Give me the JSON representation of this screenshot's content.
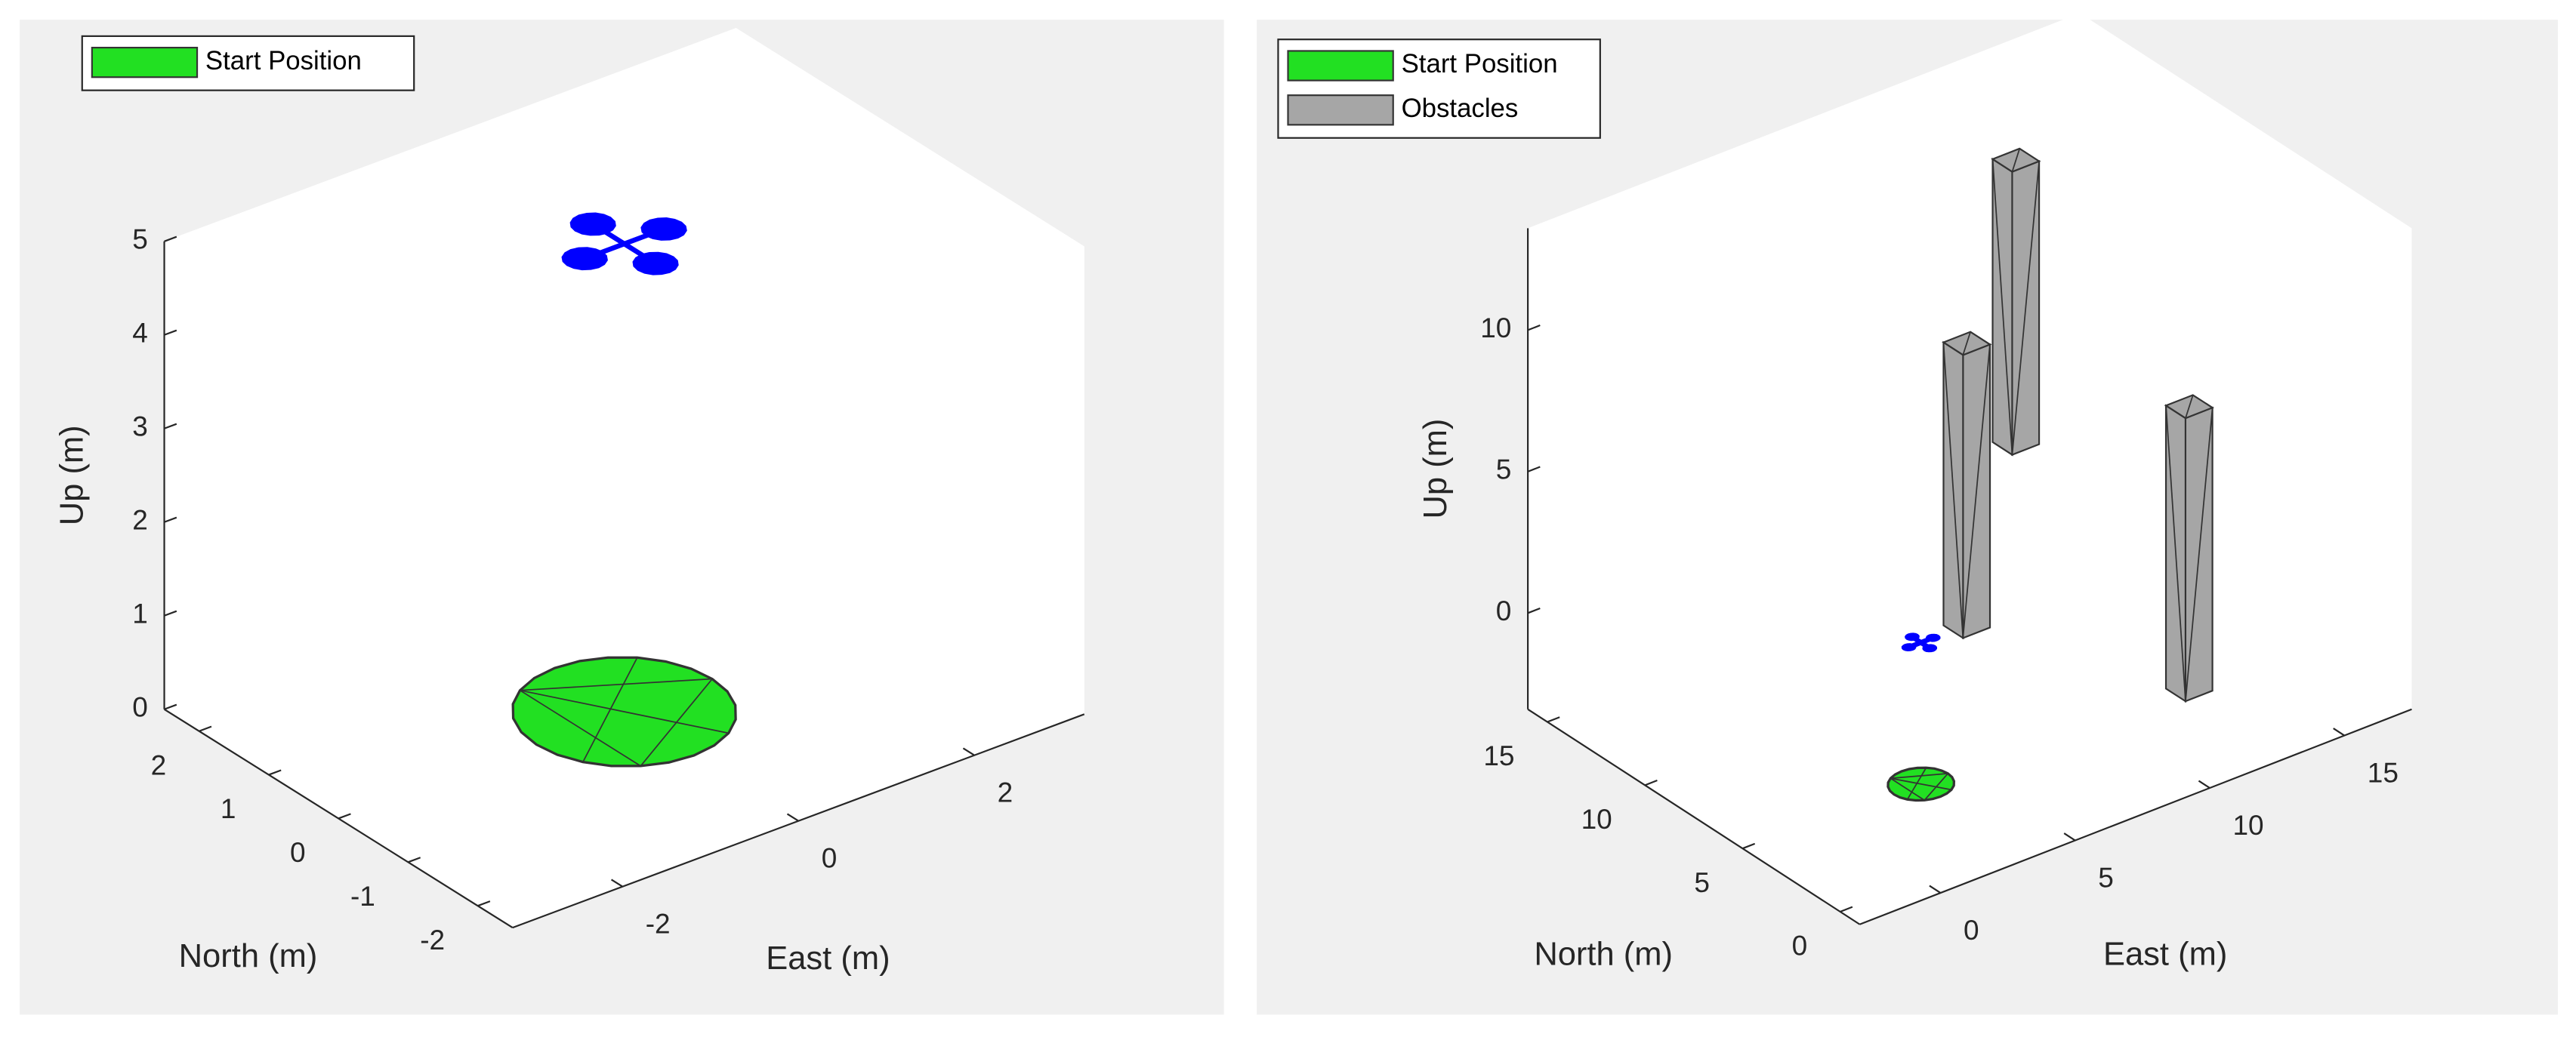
{
  "chart_data": [
    {
      "type": "scene3d",
      "xlabel": "East (m)",
      "ylabel": "North (m)",
      "zlabel": "Up (m)",
      "xlim": [
        -3.25,
        3.25
      ],
      "ylim": [
        -2.5,
        2.5
      ],
      "zlim": [
        0,
        5
      ],
      "xticks": [
        -2,
        0,
        2
      ],
      "yticks": [
        -2,
        -1,
        0,
        1,
        2
      ],
      "zticks": [
        0,
        1,
        2,
        3,
        4,
        5
      ],
      "legend": "northwest",
      "start": {
        "name": "Start Position",
        "color": "#22e022",
        "x": 0,
        "y": 0,
        "z": 0,
        "radius": 1
      },
      "uav": {
        "color": "#0000ff",
        "x": 0,
        "y": 0,
        "z": 5
      }
    },
    {
      "type": "scene3d",
      "xlabel": "East (m)",
      "ylabel": "North (m)",
      "zlabel": "Up (m)",
      "xlim": [
        -3,
        17.5
      ],
      "ylim": [
        -1,
        16
      ],
      "zlim": [
        -3.4,
        13.6
      ],
      "xticks": [
        0,
        5,
        10,
        15
      ],
      "yticks": [
        0,
        5,
        10,
        15
      ],
      "zticks": [
        0,
        5,
        10
      ],
      "legend": "northwest",
      "start": {
        "name": "Start Position",
        "color": "#22e022",
        "x": 0,
        "y": 0,
        "z": 0,
        "radius": 1
      },
      "uav": {
        "color": "#0000ff",
        "x": 0,
        "y": 0,
        "z": 5
      },
      "obstacles": {
        "name": "Obstacles",
        "color": "#a6a6a6",
        "x": [
          14.4,
          6.7,
          9.6
        ],
        "y": [
          15,
          6.9,
          -0.5
        ],
        "base": [
          0,
          0,
          0
        ],
        "height": [
          10,
          10,
          10
        ],
        "width": 1
      }
    }
  ]
}
